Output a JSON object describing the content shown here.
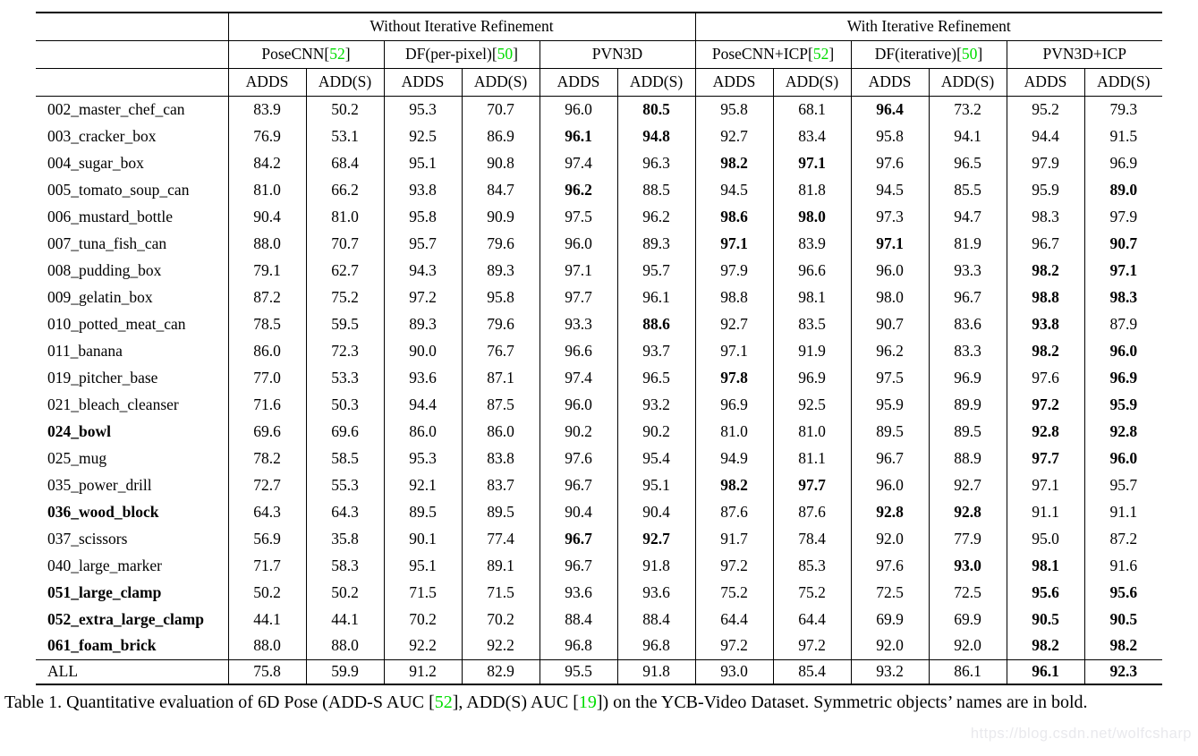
{
  "table": {
    "group_headers": [
      {
        "label": "Without Iterative Refinement"
      },
      {
        "label": "With Iterative Refinement"
      }
    ],
    "methods": [
      {
        "name": "PoseCNN",
        "ref": "52"
      },
      {
        "name": "DF(per-pixel)",
        "ref": "50"
      },
      {
        "name": "PVN3D",
        "ref": null
      },
      {
        "name": "PoseCNN+ICP",
        "ref": "52"
      },
      {
        "name": "DF(iterative)",
        "ref": "50"
      },
      {
        "name": "PVN3D+ICP",
        "ref": null
      }
    ],
    "metric_headers": [
      "ADDS",
      "ADD(S)"
    ],
    "rows": [
      {
        "name": "002_master_chef_can",
        "bold_name": false,
        "values": [
          "83.9",
          "50.2",
          "95.3",
          "70.7",
          "96.0",
          "80.5",
          "95.8",
          "68.1",
          "96.4",
          "73.2",
          "95.2",
          "79.3"
        ],
        "bold": [
          5,
          8
        ]
      },
      {
        "name": "003_cracker_box",
        "bold_name": false,
        "values": [
          "76.9",
          "53.1",
          "92.5",
          "86.9",
          "96.1",
          "94.8",
          "92.7",
          "83.4",
          "95.8",
          "94.1",
          "94.4",
          "91.5"
        ],
        "bold": [
          4,
          5
        ]
      },
      {
        "name": "004_sugar_box",
        "bold_name": false,
        "values": [
          "84.2",
          "68.4",
          "95.1",
          "90.8",
          "97.4",
          "96.3",
          "98.2",
          "97.1",
          "97.6",
          "96.5",
          "97.9",
          "96.9"
        ],
        "bold": [
          6,
          7
        ]
      },
      {
        "name": "005_tomato_soup_can",
        "bold_name": false,
        "values": [
          "81.0",
          "66.2",
          "93.8",
          "84.7",
          "96.2",
          "88.5",
          "94.5",
          "81.8",
          "94.5",
          "85.5",
          "95.9",
          "89.0"
        ],
        "bold": [
          4,
          11
        ]
      },
      {
        "name": "006_mustard_bottle",
        "bold_name": false,
        "values": [
          "90.4",
          "81.0",
          "95.8",
          "90.9",
          "97.5",
          "96.2",
          "98.6",
          "98.0",
          "97.3",
          "94.7",
          "98.3",
          "97.9"
        ],
        "bold": [
          6,
          7
        ]
      },
      {
        "name": "007_tuna_fish_can",
        "bold_name": false,
        "values": [
          "88.0",
          "70.7",
          "95.7",
          "79.6",
          "96.0",
          "89.3",
          "97.1",
          "83.9",
          "97.1",
          "81.9",
          "96.7",
          "90.7"
        ],
        "bold": [
          6,
          8,
          11
        ]
      },
      {
        "name": "008_pudding_box",
        "bold_name": false,
        "values": [
          "79.1",
          "62.7",
          "94.3",
          "89.3",
          "97.1",
          "95.7",
          "97.9",
          "96.6",
          "96.0",
          "93.3",
          "98.2",
          "97.1"
        ],
        "bold": [
          10,
          11
        ]
      },
      {
        "name": "009_gelatin_box",
        "bold_name": false,
        "values": [
          "87.2",
          "75.2",
          "97.2",
          "95.8",
          "97.7",
          "96.1",
          "98.8",
          "98.1",
          "98.0",
          "96.7",
          "98.8",
          "98.3"
        ],
        "bold": [
          10,
          11
        ]
      },
      {
        "name": "010_potted_meat_can",
        "bold_name": false,
        "values": [
          "78.5",
          "59.5",
          "89.3",
          "79.6",
          "93.3",
          "88.6",
          "92.7",
          "83.5",
          "90.7",
          "83.6",
          "93.8",
          "87.9"
        ],
        "bold": [
          5,
          10
        ]
      },
      {
        "name": "011_banana",
        "bold_name": false,
        "values": [
          "86.0",
          "72.3",
          "90.0",
          "76.7",
          "96.6",
          "93.7",
          "97.1",
          "91.9",
          "96.2",
          "83.3",
          "98.2",
          "96.0"
        ],
        "bold": [
          10,
          11
        ]
      },
      {
        "name": "019_pitcher_base",
        "bold_name": false,
        "values": [
          "77.0",
          "53.3",
          "93.6",
          "87.1",
          "97.4",
          "96.5",
          "97.8",
          "96.9",
          "97.5",
          "96.9",
          "97.6",
          "96.9"
        ],
        "bold": [
          6,
          11
        ]
      },
      {
        "name": "021_bleach_cleanser",
        "bold_name": false,
        "values": [
          "71.6",
          "50.3",
          "94.4",
          "87.5",
          "96.0",
          "93.2",
          "96.9",
          "92.5",
          "95.9",
          "89.9",
          "97.2",
          "95.9"
        ],
        "bold": [
          10,
          11
        ]
      },
      {
        "name": "024_bowl",
        "bold_name": true,
        "values": [
          "69.6",
          "69.6",
          "86.0",
          "86.0",
          "90.2",
          "90.2",
          "81.0",
          "81.0",
          "89.5",
          "89.5",
          "92.8",
          "92.8"
        ],
        "bold": [
          10,
          11
        ]
      },
      {
        "name": "025_mug",
        "bold_name": false,
        "values": [
          "78.2",
          "58.5",
          "95.3",
          "83.8",
          "97.6",
          "95.4",
          "94.9",
          "81.1",
          "96.7",
          "88.9",
          "97.7",
          "96.0"
        ],
        "bold": [
          10,
          11
        ]
      },
      {
        "name": "035_power_drill",
        "bold_name": false,
        "values": [
          "72.7",
          "55.3",
          "92.1",
          "83.7",
          "96.7",
          "95.1",
          "98.2",
          "97.7",
          "96.0",
          "92.7",
          "97.1",
          "95.7"
        ],
        "bold": [
          6,
          7
        ]
      },
      {
        "name": "036_wood_block",
        "bold_name": true,
        "values": [
          "64.3",
          "64.3",
          "89.5",
          "89.5",
          "90.4",
          "90.4",
          "87.6",
          "87.6",
          "92.8",
          "92.8",
          "91.1",
          "91.1"
        ],
        "bold": [
          8,
          9
        ]
      },
      {
        "name": "037_scissors",
        "bold_name": false,
        "values": [
          "56.9",
          "35.8",
          "90.1",
          "77.4",
          "96.7",
          "92.7",
          "91.7",
          "78.4",
          "92.0",
          "77.9",
          "95.0",
          "87.2"
        ],
        "bold": [
          4,
          5
        ]
      },
      {
        "name": "040_large_marker",
        "bold_name": false,
        "values": [
          "71.7",
          "58.3",
          "95.1",
          "89.1",
          "96.7",
          "91.8",
          "97.2",
          "85.3",
          "97.6",
          "93.0",
          "98.1",
          "91.6"
        ],
        "bold": [
          9,
          10
        ]
      },
      {
        "name": "051_large_clamp",
        "bold_name": true,
        "values": [
          "50.2",
          "50.2",
          "71.5",
          "71.5",
          "93.6",
          "93.6",
          "75.2",
          "75.2",
          "72.5",
          "72.5",
          "95.6",
          "95.6"
        ],
        "bold": [
          10,
          11
        ]
      },
      {
        "name": "052_extra_large_clamp",
        "bold_name": true,
        "values": [
          "44.1",
          "44.1",
          "70.2",
          "70.2",
          "88.4",
          "88.4",
          "64.4",
          "64.4",
          "69.9",
          "69.9",
          "90.5",
          "90.5"
        ],
        "bold": [
          10,
          11
        ]
      },
      {
        "name": "061_foam_brick",
        "bold_name": true,
        "values": [
          "88.0",
          "88.0",
          "92.2",
          "92.2",
          "96.8",
          "96.8",
          "97.2",
          "97.2",
          "92.0",
          "92.0",
          "98.2",
          "98.2"
        ],
        "bold": [
          10,
          11
        ]
      },
      {
        "name": "ALL",
        "bold_name": false,
        "is_all": true,
        "values": [
          "75.8",
          "59.9",
          "91.2",
          "82.9",
          "95.5",
          "91.8",
          "93.0",
          "85.4",
          "93.2",
          "86.1",
          "96.1",
          "92.3"
        ],
        "bold": [
          10,
          11
        ]
      }
    ]
  },
  "caption": {
    "segments": [
      {
        "text": "Table 1. Quantitative evaluation of 6D Pose (ADD-S AUC [",
        "green": false
      },
      {
        "text": "52",
        "green": true
      },
      {
        "text": "], ADD(S) AUC [",
        "green": false
      },
      {
        "text": "19",
        "green": true
      },
      {
        "text": "]) on the YCB-Video Dataset. Symmetric objects’ names are in bold.",
        "green": false
      }
    ]
  },
  "watermark": "https://blog.csdn.net/wolfcsharp"
}
